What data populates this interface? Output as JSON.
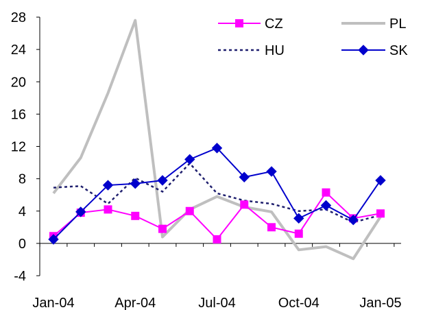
{
  "chart_data": {
    "type": "line",
    "title": "",
    "xlabel": "",
    "ylabel": "",
    "ylim": [
      -4,
      28
    ],
    "yticks": [
      -4,
      0,
      4,
      8,
      12,
      16,
      20,
      24,
      28
    ],
    "xticks": [
      {
        "index": 0,
        "label": "Jan-04"
      },
      {
        "index": 3,
        "label": "Apr-04"
      },
      {
        "index": 6,
        "label": "Jul-04"
      },
      {
        "index": 9,
        "label": "Oct-04"
      },
      {
        "index": 12,
        "label": "Jan-05"
      }
    ],
    "x": [
      "Jan-04",
      "Feb-04",
      "Mar-04",
      "Apr-04",
      "May-04",
      "Jun-04",
      "Jul-04",
      "Aug-04",
      "Sep-04",
      "Oct-04",
      "Nov-04",
      "Dec-04",
      "Jan-05"
    ],
    "grid": false,
    "legend_position": "top-right",
    "series": [
      {
        "name": "CZ",
        "color": "#ff00ff",
        "style": "solid",
        "marker": "square",
        "values": [
          0.9,
          3.8,
          4.2,
          3.4,
          1.8,
          4.0,
          0.5,
          4.8,
          2.0,
          1.2,
          6.3,
          3.1,
          3.7
        ]
      },
      {
        "name": "PL",
        "color": "#bfbfbf",
        "style": "solid-thick",
        "marker": "none",
        "values": [
          6.2,
          10.6,
          18.6,
          27.6,
          0.8,
          4.2,
          5.8,
          4.5,
          3.9,
          -0.8,
          -0.4,
          -1.9,
          3.3
        ]
      },
      {
        "name": "HU",
        "color": "#1f1f6e",
        "style": "dotted",
        "marker": "none",
        "values": [
          6.9,
          7.1,
          4.9,
          8.1,
          6.4,
          9.9,
          6.2,
          5.3,
          4.9,
          4.0,
          4.2,
          2.6,
          3.5
        ]
      },
      {
        "name": "SK",
        "color": "#0000cc",
        "style": "solid",
        "marker": "diamond",
        "values": [
          0.5,
          3.9,
          7.2,
          7.4,
          7.8,
          10.4,
          11.8,
          8.2,
          8.9,
          3.1,
          4.7,
          2.9,
          7.8
        ]
      }
    ]
  }
}
